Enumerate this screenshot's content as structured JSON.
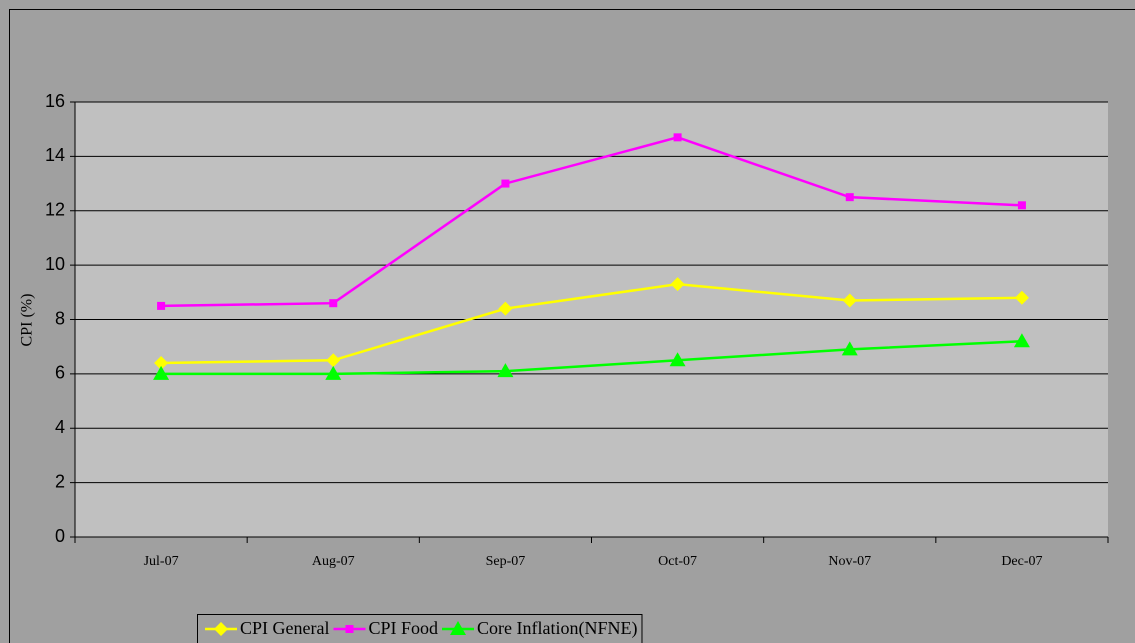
{
  "chart_data": {
    "type": "line",
    "categories": [
      "Jul-07",
      "Aug-07",
      "Sep-07",
      "Oct-07",
      "Nov-07",
      "Dec-07"
    ],
    "series": [
      {
        "name": "CPI General",
        "color": "#ffff00",
        "marker": "diamond",
        "values": [
          6.4,
          6.5,
          8.4,
          9.3,
          8.7,
          8.8
        ]
      },
      {
        "name": "CPI Food",
        "color": "#ff00ff",
        "marker": "square",
        "values": [
          8.5,
          8.6,
          13.0,
          14.7,
          12.5,
          12.2
        ]
      },
      {
        "name": "Core Inflation(NFNE)",
        "color": "#00ff00",
        "marker": "triangle",
        "values": [
          6.0,
          6.0,
          6.1,
          6.5,
          6.9,
          7.2
        ]
      }
    ],
    "y_label": "CPI (%)",
    "ylim": [
      0,
      16
    ],
    "yticks": [
      0,
      2,
      4,
      6,
      8,
      10,
      12,
      14,
      16
    ],
    "grid": true,
    "legend": "bottom"
  }
}
